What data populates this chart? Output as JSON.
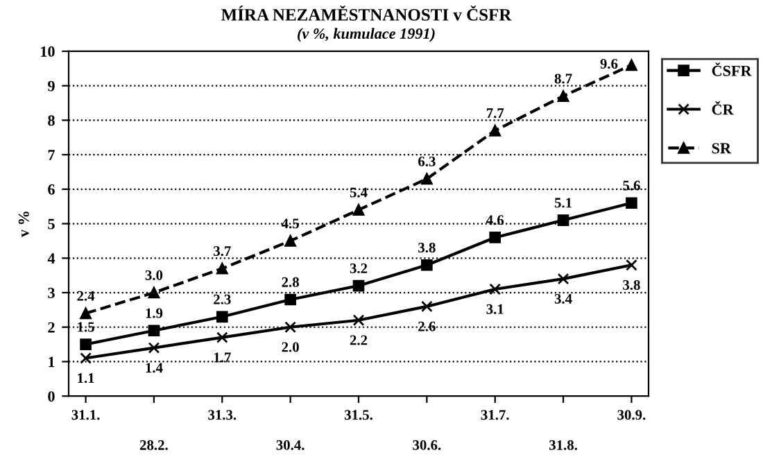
{
  "chart_data": {
    "type": "line",
    "title": "MÍRA NEZAMĚSTNANOSTI v ČSFR",
    "subtitle": "(v %, kumulace 1991)",
    "ylabel": "v %",
    "categories": [
      "31.1.",
      "28.2.",
      "31.3.",
      "30.4.",
      "31.5.",
      "30.6.",
      "31.7.",
      "31.8.",
      "30.9."
    ],
    "series": [
      {
        "name": "ČSFR",
        "color": "#000000",
        "marker": "square",
        "line_style": "solid",
        "values": [
          1.5,
          1.9,
          2.3,
          2.8,
          3.2,
          3.8,
          4.6,
          5.1,
          5.6
        ],
        "value_labels": [
          "1.5",
          "1.9",
          "2.3",
          "2.8",
          "3.2",
          "3.8",
          "4.6",
          "5.1",
          "5.6"
        ]
      },
      {
        "name": "ČR",
        "color": "#000000",
        "marker": "cross",
        "line_style": "solid",
        "values": [
          1.1,
          1.4,
          1.7,
          2.0,
          2.2,
          2.6,
          3.1,
          3.4,
          3.8
        ],
        "value_labels": [
          "1.1",
          "1.4",
          "1.7",
          "2.0",
          "2.2",
          "2.6",
          "3.1",
          "3.4",
          "3.8"
        ]
      },
      {
        "name": "SR",
        "color": "#000000",
        "marker": "triangle",
        "line_style": "dashed",
        "values": [
          2.4,
          3.0,
          3.7,
          4.5,
          5.4,
          6.3,
          7.7,
          8.7,
          9.6
        ],
        "value_labels": [
          "2.4",
          "3.0",
          "3.7",
          "4.5",
          "5.4",
          "6.3",
          "7.7",
          "8.7",
          "9.6"
        ]
      }
    ],
    "ylim": [
      0,
      10
    ],
    "yticks": [
      0,
      1,
      2,
      3,
      4,
      5,
      6,
      7,
      8,
      9,
      10
    ],
    "grid": "y",
    "legend": "right"
  }
}
